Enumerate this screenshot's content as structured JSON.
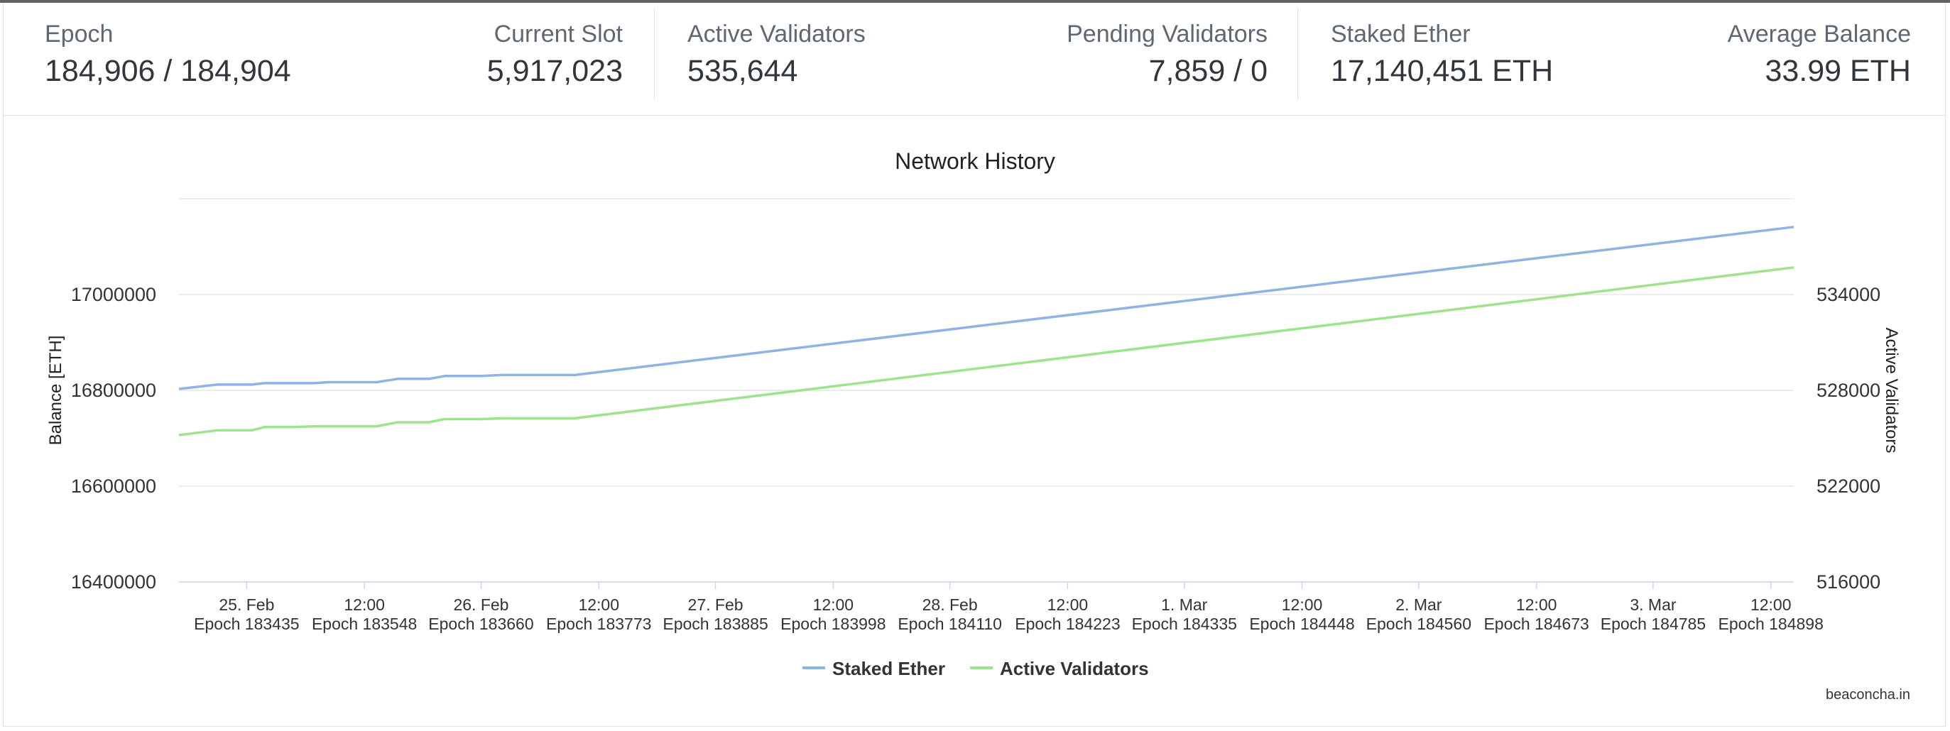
{
  "stats": [
    {
      "label": "Epoch",
      "value": "184,906 / 184,904"
    },
    {
      "label": "Current Slot",
      "value": "5,917,023"
    },
    {
      "label": "Active Validators",
      "value": "535,644"
    },
    {
      "label": "Pending Validators",
      "value": "7,859 / 0"
    },
    {
      "label": "Staked Ether",
      "value": "17,140,451 ETH"
    },
    {
      "label": "Average Balance",
      "value": "33.99 ETH"
    }
  ],
  "credit": "beaconcha.in",
  "colors": {
    "staked": "#8fb3e3",
    "active": "#9ee38d",
    "grid": "#e6e6e6",
    "axis": "#ccd6eb"
  },
  "chart_data": {
    "type": "line",
    "title": "Network History",
    "ylabel": "Balance [ETH]",
    "y2label": "Active Validators",
    "ylim": [
      16400000,
      17200000
    ],
    "y2lim": [
      516000,
      540000
    ],
    "yticks": [
      "16400000",
      "16600000",
      "16800000",
      "17000000"
    ],
    "y2ticks": [
      "516000",
      "522000",
      "528000",
      "534000"
    ],
    "xlim": [
      183370,
      184920
    ],
    "xticks": [
      {
        "x": 183435,
        "date": "25. Feb",
        "epoch": "Epoch 183435"
      },
      {
        "x": 183548,
        "date": "12:00",
        "epoch": "Epoch 183548"
      },
      {
        "x": 183660,
        "date": "26. Feb",
        "epoch": "Epoch 183660"
      },
      {
        "x": 183773,
        "date": "12:00",
        "epoch": "Epoch 183773"
      },
      {
        "x": 183885,
        "date": "27. Feb",
        "epoch": "Epoch 183885"
      },
      {
        "x": 183998,
        "date": "12:00",
        "epoch": "Epoch 183998"
      },
      {
        "x": 184110,
        "date": "28. Feb",
        "epoch": "Epoch 184110"
      },
      {
        "x": 184223,
        "date": "12:00",
        "epoch": "Epoch 184223"
      },
      {
        "x": 184335,
        "date": "1. Mar",
        "epoch": "Epoch 184335"
      },
      {
        "x": 184448,
        "date": "12:00",
        "epoch": "Epoch 184448"
      },
      {
        "x": 184560,
        "date": "2. Mar",
        "epoch": "Epoch 184560"
      },
      {
        "x": 184673,
        "date": "12:00",
        "epoch": "Epoch 184673"
      },
      {
        "x": 184785,
        "date": "3. Mar",
        "epoch": "Epoch 184785"
      },
      {
        "x": 184898,
        "date": "12:00",
        "epoch": "Epoch 184898"
      }
    ],
    "series": [
      {
        "name": "Staked Ether",
        "axis": "left",
        "x": [
          183370,
          183407,
          183440,
          183452,
          183480,
          183500,
          183513,
          183560,
          183580,
          183610,
          183625,
          183660,
          183680,
          183750,
          184920
        ],
        "values": [
          16803000,
          16812000,
          16812000,
          16815000,
          16815000,
          16815000,
          16817000,
          16817000,
          16824000,
          16824000,
          16830000,
          16830000,
          16832000,
          16832000,
          17141000
        ]
      },
      {
        "name": "Active Validators",
        "axis": "right",
        "x": [
          183370,
          183407,
          183440,
          183452,
          183480,
          183500,
          183513,
          183560,
          183580,
          183610,
          183625,
          183660,
          183680,
          183750,
          184920
        ],
        "values": [
          525200,
          525500,
          525500,
          525700,
          525700,
          525750,
          525750,
          525750,
          526000,
          526000,
          526200,
          526200,
          526250,
          526250,
          535700
        ]
      }
    ],
    "legend": "bottom-center"
  }
}
